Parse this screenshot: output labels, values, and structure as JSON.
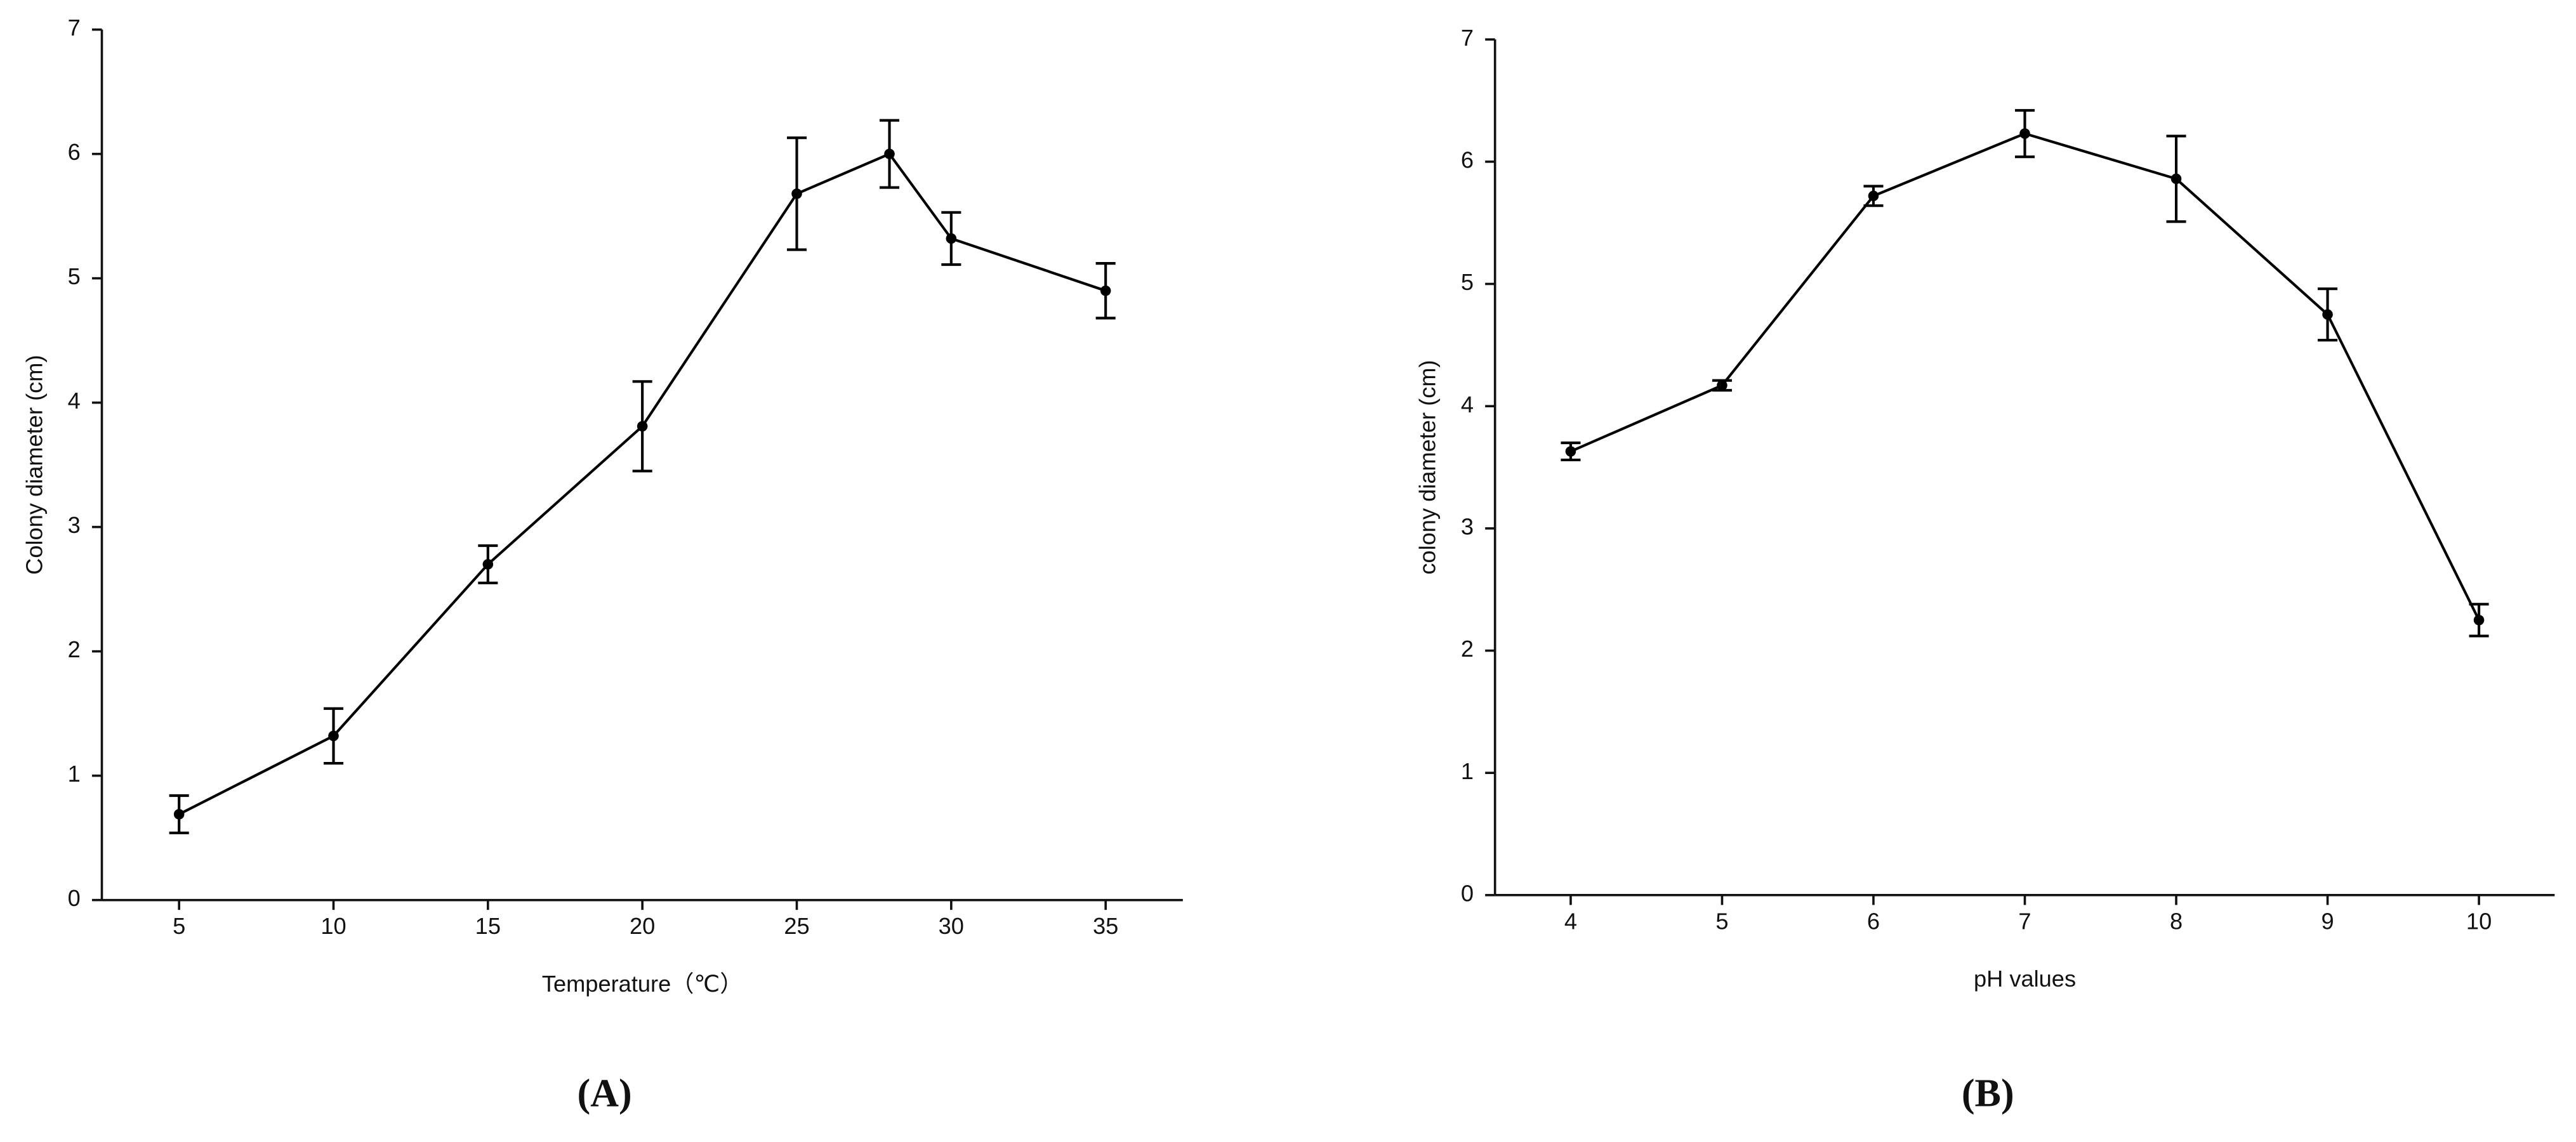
{
  "chart_data": [
    {
      "type": "line",
      "panel_label": "(A)",
      "x_label": "Temperature（℃）",
      "y_label": "Colony diameter (cm)",
      "color": "#000000",
      "x": [
        5,
        10,
        15,
        20,
        25,
        28,
        30,
        35
      ],
      "values": [
        0.69,
        1.32,
        2.7,
        3.81,
        5.68,
        6.0,
        5.32,
        4.9
      ],
      "errors": [
        0.15,
        0.22,
        0.15,
        0.36,
        0.45,
        0.27,
        0.21,
        0.22
      ],
      "xlim": [
        2.5,
        37.5
      ],
      "xticks": [
        5,
        10,
        15,
        20,
        25,
        30,
        35
      ],
      "ylim": [
        0,
        7
      ],
      "yticks": [
        0,
        1,
        2,
        3,
        4,
        5,
        6,
        7
      ]
    },
    {
      "type": "line",
      "panel_label": "(B)",
      "x_label": "pH values",
      "y_label": "colony diameter (cm)",
      "color": "#000000",
      "x": [
        4,
        5,
        6,
        7,
        8,
        9,
        10
      ],
      "values": [
        3.63,
        4.17,
        5.72,
        6.23,
        5.86,
        4.75,
        2.25
      ],
      "errors": [
        0.07,
        0.04,
        0.08,
        0.19,
        0.35,
        0.21,
        0.13
      ],
      "xlim": [
        3.5,
        10.5
      ],
      "xticks": [
        4,
        5,
        6,
        7,
        8,
        9,
        10
      ],
      "ylim": [
        0,
        7
      ],
      "yticks": [
        0,
        1,
        2,
        3,
        4,
        5,
        6,
        7
      ]
    }
  ]
}
